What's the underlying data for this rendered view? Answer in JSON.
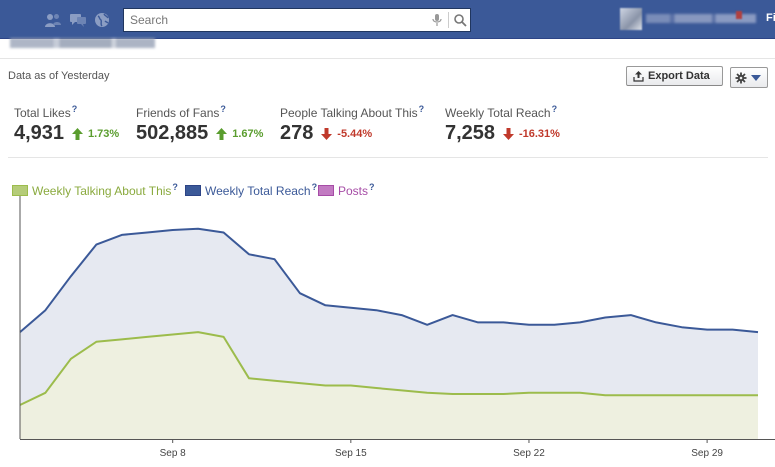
{
  "topbar": {
    "icons": [
      "friends-icon",
      "messages-icon",
      "globe-icon"
    ],
    "search": {
      "placeholder": "Search"
    },
    "profile_initials": "Fi"
  },
  "header": {
    "data_as_of": "Data as of Yesterday"
  },
  "actions": {
    "export_label": "Export Data",
    "gear_menu_icon": "gear-icon"
  },
  "stats": [
    {
      "label": "Total Likes",
      "help": "?",
      "value": "4,931",
      "change": "1.73%",
      "direction": "up"
    },
    {
      "label": "Friends of Fans",
      "help": "?",
      "value": "502,885",
      "change": "1.67%",
      "direction": "up"
    },
    {
      "label": "People Talking About This",
      "help": "?",
      "value": "278",
      "change": "-5.44%",
      "direction": "down"
    },
    {
      "label": "Weekly Total Reach",
      "help": "?",
      "value": "7,258",
      "change": "-16.31%",
      "direction": "down"
    }
  ],
  "legend": [
    {
      "label": "Weekly Talking About This",
      "help": "?",
      "color": "#9cbc4c",
      "text_color": "#8aaa3e"
    },
    {
      "label": "Weekly Total Reach",
      "help": "?",
      "color": "#3b5998",
      "text_color": "#3b5998"
    },
    {
      "label": "Posts",
      "help": "?",
      "color": "#a64ca6",
      "text_color": "#a64ca6"
    }
  ],
  "colors": {
    "topbar": "#3b5998",
    "reach_line": "#3b5998",
    "reach_fill": "#e6e9f1",
    "talking_line": "#9cbc4c",
    "talking_fill": "#eef0e0",
    "up": "#5a9d2e",
    "down": "#c0392b"
  },
  "chart_data": {
    "type": "area",
    "x_start": "Sep 2",
    "x_step_days": 1,
    "x_ticks": [
      {
        "label": "Sep 8",
        "index": 6
      },
      {
        "label": "Sep 15",
        "index": 13
      },
      {
        "label": "Sep 22",
        "index": 20
      },
      {
        "label": "Sep 29",
        "index": 27
      }
    ],
    "ylim": [
      0,
      100
    ],
    "grid": false,
    "series": [
      {
        "name": "Weekly Total Reach",
        "values": [
          44,
          53,
          67,
          80,
          84,
          85,
          86,
          86.5,
          85,
          76,
          74,
          60,
          55,
          54,
          53,
          51,
          47,
          51,
          48,
          48,
          47,
          47,
          48,
          50,
          51,
          48,
          46,
          45,
          45,
          44
        ]
      },
      {
        "name": "Weekly Talking About This",
        "values": [
          14,
          19,
          33,
          40,
          41,
          42,
          43,
          44,
          42,
          25,
          24,
          23,
          22,
          22,
          21,
          20,
          19,
          18.5,
          18.5,
          18.5,
          19,
          19,
          19,
          18,
          18,
          18,
          18,
          18,
          18,
          18
        ]
      }
    ]
  }
}
